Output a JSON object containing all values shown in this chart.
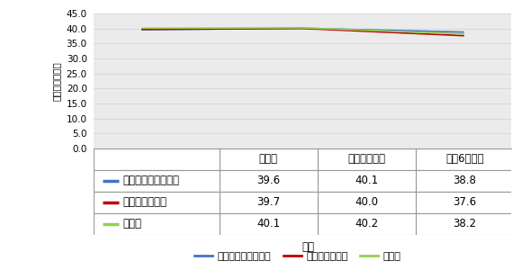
{
  "series": [
    {
      "name": "マインドフルネス群",
      "color": "#4472C4",
      "values": [
        39.6,
        40.1,
        38.8
      ]
    },
    {
      "name": "認知行動療法群",
      "color": "#C00000",
      "values": [
        39.7,
        40.0,
        37.6
      ]
    },
    {
      "name": "待機群",
      "color": "#92D050",
      "values": [
        40.1,
        40.2,
        38.2
      ]
    }
  ],
  "x_labels": [
    "介入前",
    "介入終了直後",
    "更に6週間後"
  ],
  "ylabel": "消費者態度指数",
  "xlabel": "時点",
  "ylim": [
    0.0,
    45.0
  ],
  "yticks": [
    0.0,
    5.0,
    10.0,
    15.0,
    20.0,
    25.0,
    30.0,
    35.0,
    40.0,
    45.0
  ],
  "table_values": [
    [
      "39.6",
      "40.1",
      "38.8"
    ],
    [
      "39.7",
      "40.0",
      "37.6"
    ],
    [
      "40.1",
      "40.2",
      "38.2"
    ]
  ],
  "bg_color": "#FFFFFF",
  "grid_color": "#D0D0D0",
  "plot_bg_color": "#EBEBEB",
  "table_line_color": "#999999",
  "ylabel_fontsize": 7.5,
  "tick_fontsize": 7.5,
  "table_fontsize": 8.5,
  "xlabel_fontsize": 8.5,
  "legend_fontsize": 8.0
}
